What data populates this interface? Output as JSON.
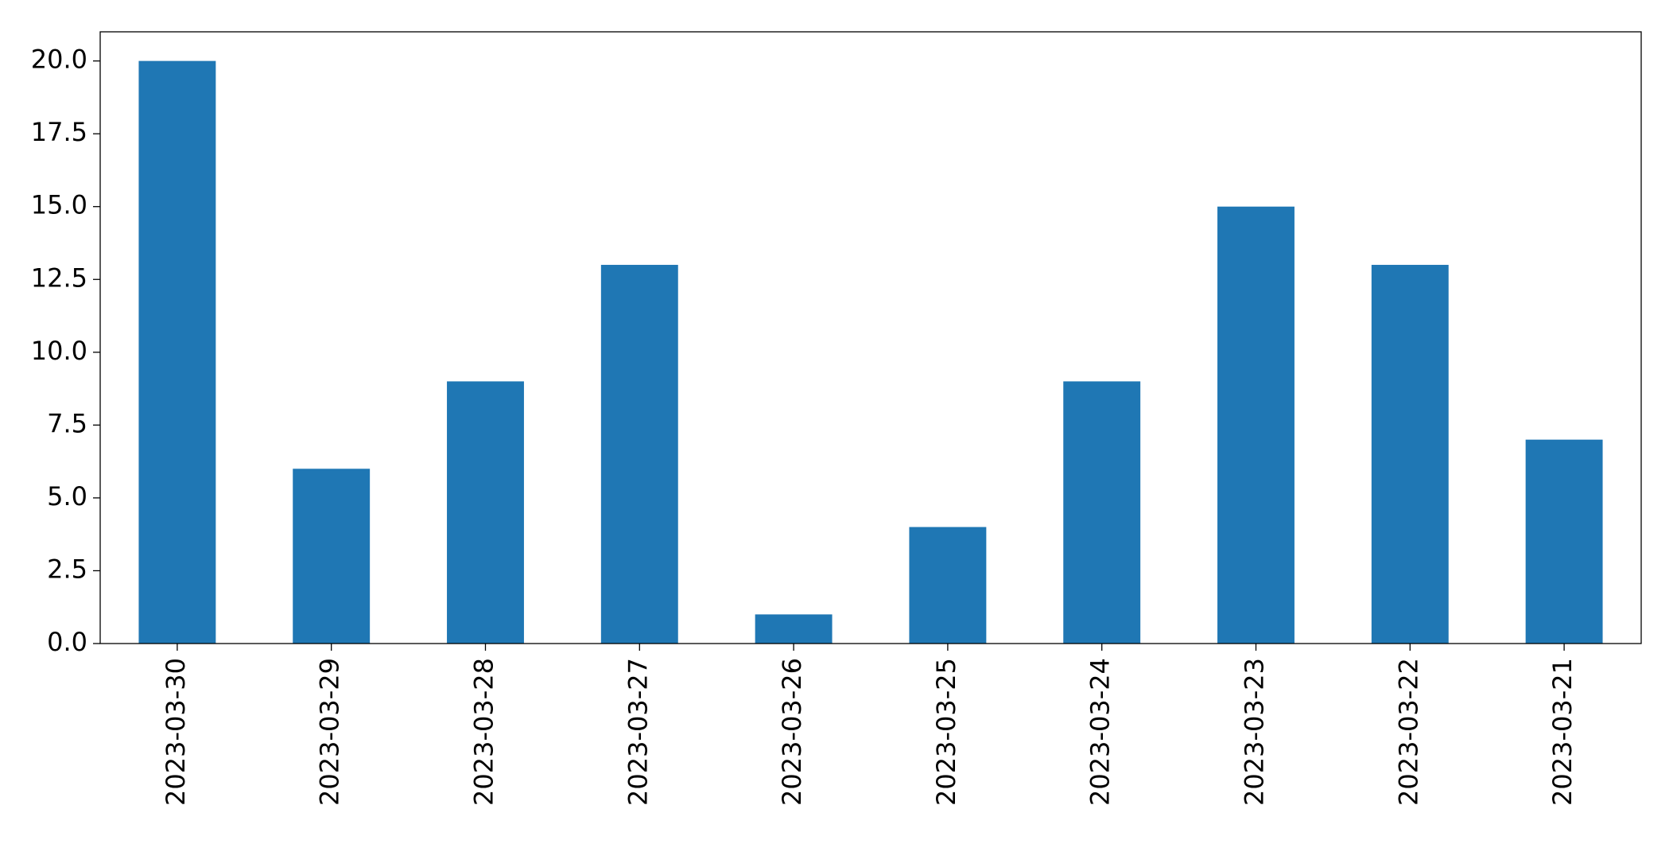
{
  "chart_data": {
    "type": "bar",
    "categories": [
      "2023-03-30",
      "2023-03-29",
      "2023-03-28",
      "2023-03-27",
      "2023-03-26",
      "2023-03-25",
      "2023-03-24",
      "2023-03-23",
      "2023-03-22",
      "2023-03-21"
    ],
    "values": [
      20,
      6,
      9,
      13,
      1,
      4,
      9,
      15,
      13,
      7
    ],
    "color": "#1f77b4",
    "ylim": [
      0,
      21
    ],
    "yticks": [
      {
        "value": 0,
        "label": "0.0"
      },
      {
        "value": 2.5,
        "label": "2.5"
      },
      {
        "value": 5,
        "label": "5.0"
      },
      {
        "value": 7.5,
        "label": "7.5"
      },
      {
        "value": 10,
        "label": "10.0"
      },
      {
        "value": 12.5,
        "label": "12.5"
      },
      {
        "value": 15,
        "label": "15.0"
      },
      {
        "value": 17.5,
        "label": "17.5"
      },
      {
        "value": 20,
        "label": "20.0"
      }
    ],
    "grid": false
  }
}
